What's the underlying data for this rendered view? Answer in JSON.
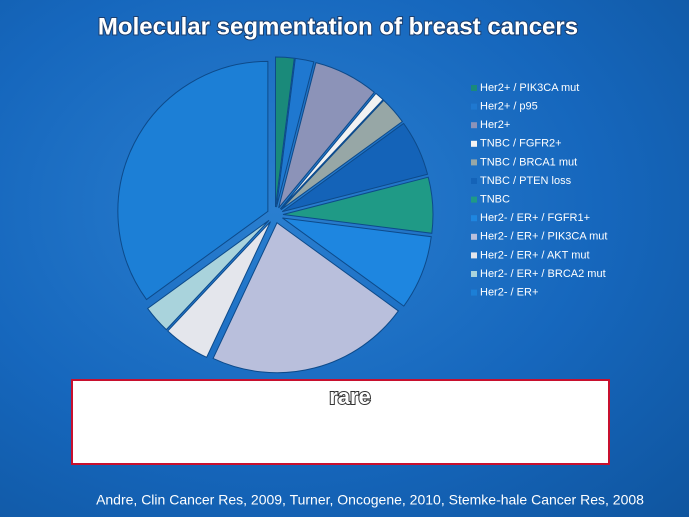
{
  "chart_data": {
    "type": "pie",
    "title": "Molecular segmentation of breast cancers",
    "categories": [
      "Her2+ / PIK3CA mut",
      "Her2+ / p95",
      "Her2+",
      "TNBC / FGFR2+",
      "TNBC / BRCA1 mut",
      "TNBC / PTEN loss",
      "TNBC",
      "Her2- / ER+ / FGFR1+",
      "Her2- / ER+ / PIK3CA mut",
      "Her2- / ER+ / AKT mut",
      "Her2- / ER+ / BRCA2 mut",
      "Her2- / ER+"
    ],
    "values": [
      2,
      2,
      7,
      1,
      3,
      6,
      6,
      8,
      22,
      5,
      3,
      35
    ],
    "colors": [
      "#1a8a7a",
      "#1f78d0",
      "#8c93b8",
      "#f2f2f2",
      "#97a7a6",
      "#1463b8",
      "#1f9a86",
      "#1e86e0",
      "#b9bfdc",
      "#e4e6ec",
      "#a9d3dc",
      "#1c7fd6"
    ]
  },
  "annotation": "rare",
  "footer": "Andre, Clin Cancer Res, 2009, Turner, Oncogene, 2010, Stemke-hale Cancer Res, 2008"
}
